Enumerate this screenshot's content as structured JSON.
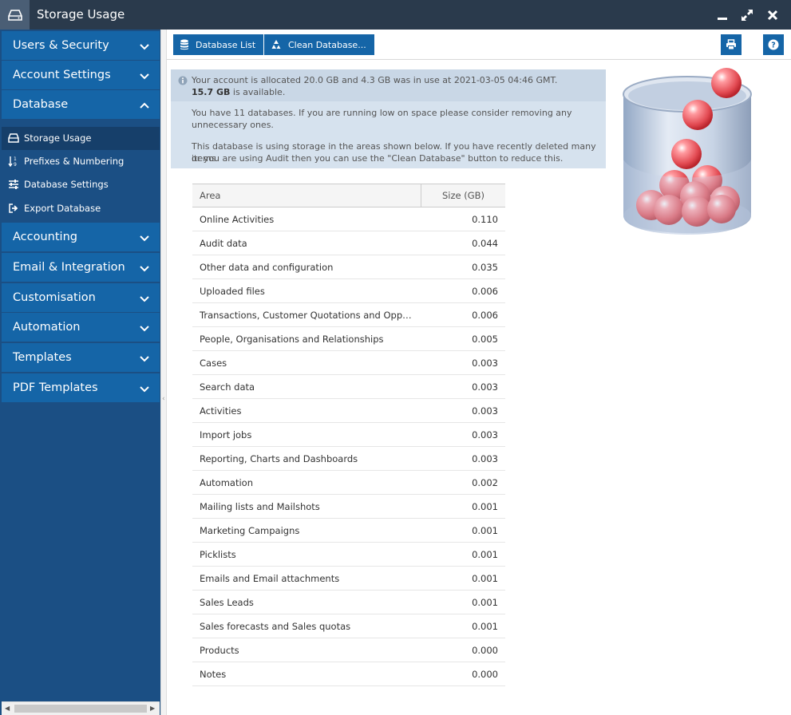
{
  "window": {
    "title": "Storage Usage"
  },
  "sidebar": {
    "categories_top": [
      {
        "label": "Users & Security",
        "expanded": false
      },
      {
        "label": "Account Settings",
        "expanded": false
      },
      {
        "label": "Database",
        "expanded": true
      }
    ],
    "subitems": [
      {
        "label": "Storage Usage",
        "icon": "hard-drive-icon",
        "active": true
      },
      {
        "label": "Prefixes & Numbering",
        "icon": "numbering-icon",
        "active": false
      },
      {
        "label": "Database Settings",
        "icon": "sliders-icon",
        "active": false
      },
      {
        "label": "Export Database",
        "icon": "export-icon",
        "active": false
      }
    ],
    "categories_bottom": [
      {
        "label": "Accounting"
      },
      {
        "label": "Email & Integration"
      },
      {
        "label": "Customisation"
      },
      {
        "label": "Automation"
      },
      {
        "label": "Templates"
      },
      {
        "label": "PDF Templates"
      }
    ]
  },
  "toolbar": {
    "database_list_label": "Database List",
    "clean_database_label": "Clean Database..."
  },
  "info": {
    "line1": "Your account is allocated 20.0 GB and 4.3 GB was in use at 2021-03-05 04:46 GMT.",
    "available_amount": "15.7 GB",
    "available_suffix": " is available.",
    "line2a": "You have 11 databases. If you are running low on space please consider removing any",
    "line2b": "unnecessary ones.",
    "line3a": "This database is using storage in the areas shown below. If you have recently deleted many items",
    "line3b": "or you are using Audit then you can use the \"Clean Database\" button to reduce this."
  },
  "table": {
    "col_area": "Area",
    "col_size": "Size (GB)",
    "rows": [
      {
        "area": "Online Activities",
        "size": "0.110"
      },
      {
        "area": "Audit data",
        "size": "0.044"
      },
      {
        "area": "Other data and configuration",
        "size": "0.035"
      },
      {
        "area": "Uploaded files",
        "size": "0.006"
      },
      {
        "area": "Transactions, Customer Quotations and Opportunities",
        "size": "0.006"
      },
      {
        "area": "People, Organisations and Relationships",
        "size": "0.005"
      },
      {
        "area": "Cases",
        "size": "0.003"
      },
      {
        "area": "Search data",
        "size": "0.003"
      },
      {
        "area": "Activities",
        "size": "0.003"
      },
      {
        "area": "Import jobs",
        "size": "0.003"
      },
      {
        "area": "Reporting, Charts and Dashboards",
        "size": "0.003"
      },
      {
        "area": "Automation",
        "size": "0.002"
      },
      {
        "area": "Mailing lists and Mailshots",
        "size": "0.001"
      },
      {
        "area": "Marketing Campaigns",
        "size": "0.001"
      },
      {
        "area": "Picklists",
        "size": "0.001"
      },
      {
        "area": "Emails and Email attachments",
        "size": "0.001"
      },
      {
        "area": "Sales Leads",
        "size": "0.001"
      },
      {
        "area": "Sales forecasts and Sales quotas",
        "size": "0.001"
      },
      {
        "area": "Products",
        "size": "0.000"
      },
      {
        "area": "Notes",
        "size": "0.000"
      }
    ]
  },
  "colors": {
    "titlebar": "#2a3a4c",
    "sidebar_category": "#1565a7",
    "sidebar_bg": "#1b4f84",
    "accent_button": "#1565a7",
    "info_bg": "#d6e2ee"
  }
}
